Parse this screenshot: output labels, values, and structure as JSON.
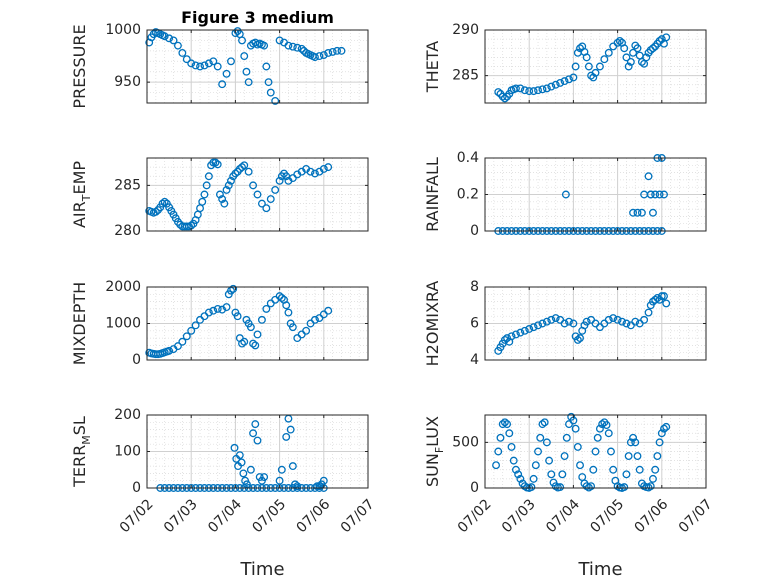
{
  "chart_data": [
    {
      "type": "scatter",
      "title": "Figure 3 medium",
      "ylabel_main": "PRESSURE",
      "ylabel_sub": "",
      "ylim": [
        930,
        1000
      ],
      "yticks": [
        950,
        1000
      ],
      "yticklabels": [
        "950",
        "1000"
      ],
      "xlim": [
        0,
        5
      ],
      "xticks": [
        0,
        1,
        2,
        3,
        4,
        5
      ],
      "xticklabels": [],
      "grid": true,
      "marker_color": "#0072BD",
      "x": [
        0.05,
        0.1,
        0.15,
        0.2,
        0.25,
        0.3,
        0.35,
        0.4,
        0.5,
        0.6,
        0.7,
        0.8,
        0.9,
        1.0,
        1.1,
        1.2,
        1.3,
        1.4,
        1.5,
        1.6,
        1.7,
        1.8,
        1.9,
        2.0,
        2.05,
        2.1,
        2.15,
        2.2,
        2.25,
        2.3,
        2.35,
        2.4,
        2.45,
        2.5,
        2.55,
        2.6,
        2.65,
        2.7,
        2.75,
        2.8,
        2.9,
        3.0,
        3.1,
        3.2,
        3.3,
        3.4,
        3.5,
        3.55,
        3.6,
        3.65,
        3.7,
        3.75,
        3.8,
        3.9,
        4.0,
        4.1,
        4.2,
        4.3,
        4.4
      ],
      "y": [
        988,
        993,
        996,
        998,
        997,
        996,
        995,
        994,
        992,
        990,
        985,
        978,
        972,
        968,
        966,
        965,
        966,
        968,
        970,
        965,
        948,
        958,
        970,
        997,
        999,
        996,
        990,
        975,
        960,
        950,
        985,
        987,
        988,
        986,
        987,
        986,
        985,
        965,
        950,
        940,
        932,
        990,
        988,
        985,
        984,
        983,
        982,
        980,
        978,
        977,
        976,
        975,
        974,
        975,
        976,
        978,
        979,
        980,
        980
      ]
    },
    {
      "type": "scatter",
      "title": "",
      "ylabel_main": "THETA",
      "ylabel_sub": "",
      "ylim": [
        282,
        290
      ],
      "yticks": [
        285,
        290
      ],
      "yticklabels": [
        "285",
        "290"
      ],
      "xlim": [
        0,
        5
      ],
      "xticks": [
        0,
        1,
        2,
        3,
        4,
        5
      ],
      "xticklabels": [],
      "grid": true,
      "marker_color": "#0072BD",
      "x": [
        0.3,
        0.35,
        0.4,
        0.45,
        0.5,
        0.55,
        0.6,
        0.65,
        0.7,
        0.8,
        0.9,
        1.0,
        1.1,
        1.2,
        1.3,
        1.4,
        1.5,
        1.6,
        1.7,
        1.8,
        1.9,
        2.0,
        2.05,
        2.1,
        2.15,
        2.2,
        2.25,
        2.3,
        2.35,
        2.4,
        2.45,
        2.5,
        2.6,
        2.7,
        2.8,
        2.9,
        3.0,
        3.05,
        3.1,
        3.15,
        3.2,
        3.25,
        3.3,
        3.35,
        3.4,
        3.45,
        3.5,
        3.55,
        3.6,
        3.65,
        3.7,
        3.75,
        3.8,
        3.85,
        3.9,
        3.95,
        4.0,
        4.05,
        4.1
      ],
      "y": [
        283.2,
        283.0,
        282.7,
        282.5,
        282.7,
        283.0,
        283.4,
        283.5,
        283.6,
        283.6,
        283.4,
        283.3,
        283.3,
        283.4,
        283.5,
        283.6,
        283.8,
        284.0,
        284.2,
        284.4,
        284.6,
        284.8,
        286.0,
        287.5,
        288.0,
        288.2,
        287.6,
        287.0,
        286.0,
        285.0,
        284.8,
        285.3,
        286.0,
        286.8,
        287.5,
        288.2,
        288.6,
        288.8,
        288.6,
        288.0,
        287.0,
        286.0,
        286.5,
        287.5,
        288.3,
        288.0,
        287.2,
        286.5,
        286.3,
        287.0,
        287.5,
        287.8,
        288.0,
        288.2,
        288.5,
        288.8,
        289.0,
        288.5,
        289.2
      ]
    },
    {
      "type": "scatter",
      "title": "",
      "ylabel_main": "AIR",
      "ylabel_sub": "T",
      "ylabel_tail": "EMP",
      "ylim": [
        280,
        288
      ],
      "yticks": [
        280,
        285
      ],
      "yticklabels": [
        "280",
        "285"
      ],
      "xlim": [
        0,
        5
      ],
      "xticks": [
        0,
        1,
        2,
        3,
        4,
        5
      ],
      "xticklabels": [],
      "grid": true,
      "marker_color": "#0072BD",
      "x": [
        0.05,
        0.1,
        0.15,
        0.2,
        0.25,
        0.3,
        0.35,
        0.4,
        0.45,
        0.5,
        0.55,
        0.6,
        0.65,
        0.7,
        0.75,
        0.8,
        0.85,
        0.9,
        0.95,
        1.0,
        1.05,
        1.1,
        1.15,
        1.2,
        1.25,
        1.3,
        1.35,
        1.4,
        1.45,
        1.5,
        1.55,
        1.6,
        1.65,
        1.7,
        1.75,
        1.8,
        1.85,
        1.9,
        1.95,
        2.0,
        2.05,
        2.1,
        2.15,
        2.2,
        2.3,
        2.4,
        2.5,
        2.6,
        2.7,
        2.8,
        2.9,
        3.0,
        3.05,
        3.1,
        3.15,
        3.2,
        3.3,
        3.4,
        3.5,
        3.6,
        3.7,
        3.8,
        3.9,
        4.0,
        4.1
      ],
      "y": [
        282.2,
        282.1,
        282.0,
        282.1,
        282.3,
        282.6,
        283.0,
        283.2,
        283.0,
        282.6,
        282.2,
        281.8,
        281.4,
        281.0,
        280.7,
        280.5,
        280.5,
        280.5,
        280.5,
        280.6,
        280.8,
        281.2,
        281.8,
        282.5,
        283.2,
        284.0,
        285.0,
        286.0,
        287.2,
        287.5,
        287.5,
        287.3,
        284.0,
        283.5,
        283.0,
        284.5,
        285.0,
        285.5,
        286.0,
        286.3,
        286.5,
        286.8,
        287.0,
        287.2,
        286.5,
        285.0,
        284.0,
        283.0,
        282.5,
        283.5,
        284.5,
        285.5,
        286.0,
        286.3,
        286.0,
        285.5,
        285.8,
        286.2,
        286.5,
        286.8,
        286.5,
        286.3,
        286.5,
        286.8,
        287.0
      ]
    },
    {
      "type": "scatter",
      "title": "",
      "ylabel_main": "RAINFALL",
      "ylabel_sub": "",
      "ylim": [
        0,
        0.4
      ],
      "yticks": [
        0,
        0.2,
        0.4
      ],
      "yticklabels": [
        "0",
        "0.2",
        "0.4"
      ],
      "xlim": [
        0,
        5
      ],
      "xticks": [
        0,
        1,
        2,
        3,
        4,
        5
      ],
      "xticklabels": [],
      "grid": true,
      "marker_color": "#0072BD",
      "x": [
        0.3,
        0.4,
        0.5,
        0.6,
        0.7,
        0.8,
        0.9,
        1.0,
        1.1,
        1.2,
        1.3,
        1.4,
        1.5,
        1.6,
        1.7,
        1.8,
        1.9,
        2.0,
        2.1,
        2.2,
        2.3,
        2.4,
        2.5,
        2.6,
        2.7,
        2.8,
        2.9,
        3.0,
        3.1,
        3.2,
        3.3,
        3.4,
        3.5,
        3.6,
        3.7,
        3.8,
        3.9,
        4.0,
        1.83,
        3.35,
        3.45,
        3.55,
        3.6,
        3.75,
        3.8,
        3.85,
        3.7,
        3.75,
        3.9,
        3.95,
        4.0,
        4.05
      ],
      "y": [
        0,
        0,
        0,
        0,
        0,
        0,
        0,
        0,
        0,
        0,
        0,
        0,
        0,
        0,
        0,
        0,
        0,
        0,
        0,
        0,
        0,
        0,
        0,
        0,
        0,
        0,
        0,
        0,
        0,
        0,
        0,
        0,
        0,
        0,
        0,
        0,
        0,
        0,
        0.2,
        0.1,
        0.1,
        0.1,
        0.2,
        0.2,
        0.1,
        0.2,
        0.3,
        0.2,
        0.4,
        0.2,
        0.4,
        0.2
      ]
    },
    {
      "type": "scatter",
      "title": "",
      "ylabel_main": "MIXDEPTH",
      "ylabel_sub": "",
      "ylim": [
        0,
        2000
      ],
      "yticks": [
        0,
        1000,
        2000
      ],
      "yticklabels": [
        "0",
        "1000",
        "2000"
      ],
      "xlim": [
        0,
        5
      ],
      "xticks": [
        0,
        1,
        2,
        3,
        4,
        5
      ],
      "xticklabels": [],
      "grid": true,
      "marker_color": "#0072BD",
      "x": [
        0.05,
        0.1,
        0.15,
        0.2,
        0.25,
        0.3,
        0.35,
        0.4,
        0.45,
        0.5,
        0.6,
        0.7,
        0.8,
        0.9,
        1.0,
        1.1,
        1.2,
        1.3,
        1.4,
        1.5,
        1.6,
        1.7,
        1.8,
        1.85,
        1.9,
        1.95,
        2.0,
        2.05,
        2.1,
        2.15,
        2.2,
        2.25,
        2.3,
        2.35,
        2.4,
        2.45,
        2.5,
        2.6,
        2.7,
        2.8,
        2.9,
        3.0,
        3.05,
        3.1,
        3.15,
        3.2,
        3.25,
        3.3,
        3.4,
        3.5,
        3.6,
        3.7,
        3.8,
        3.9,
        4.0,
        4.1
      ],
      "y": [
        200,
        180,
        170,
        160,
        160,
        170,
        190,
        210,
        230,
        250,
        300,
        380,
        500,
        650,
        800,
        950,
        1100,
        1200,
        1300,
        1350,
        1400,
        1380,
        1450,
        1800,
        1900,
        1950,
        1300,
        1200,
        600,
        450,
        500,
        1100,
        1000,
        900,
        450,
        400,
        700,
        1100,
        1400,
        1550,
        1650,
        1750,
        1700,
        1650,
        1500,
        1300,
        1000,
        900,
        600,
        700,
        800,
        1000,
        1100,
        1150,
        1250,
        1350
      ]
    },
    {
      "type": "scatter",
      "title": "",
      "ylabel_main": "H2OMIXRA",
      "ylabel_sub": "",
      "ylim": [
        4,
        8
      ],
      "yticks": [
        4,
        6,
        8
      ],
      "yticklabels": [
        "4",
        "6",
        "8"
      ],
      "xlim": [
        0,
        5
      ],
      "xticks": [
        0,
        1,
        2,
        3,
        4,
        5
      ],
      "xticklabels": [],
      "grid": true,
      "marker_color": "#0072BD",
      "x": [
        0.3,
        0.35,
        0.4,
        0.45,
        0.5,
        0.55,
        0.6,
        0.7,
        0.8,
        0.9,
        1.0,
        1.1,
        1.2,
        1.3,
        1.4,
        1.5,
        1.6,
        1.7,
        1.8,
        1.9,
        2.0,
        2.05,
        2.1,
        2.15,
        2.2,
        2.25,
        2.3,
        2.4,
        2.5,
        2.6,
        2.7,
        2.8,
        2.9,
        3.0,
        3.1,
        3.2,
        3.3,
        3.4,
        3.5,
        3.6,
        3.7,
        3.75,
        3.8,
        3.85,
        3.9,
        3.95,
        4.0,
        4.05,
        4.1
      ],
      "y": [
        4.5,
        4.7,
        4.9,
        5.1,
        5.2,
        5.0,
        5.3,
        5.4,
        5.5,
        5.6,
        5.7,
        5.8,
        5.9,
        6.0,
        6.1,
        6.2,
        6.3,
        6.2,
        6.0,
        6.1,
        6.0,
        5.3,
        5.1,
        5.2,
        5.6,
        5.9,
        6.1,
        6.2,
        6.0,
        5.8,
        6.0,
        6.2,
        6.3,
        6.2,
        6.1,
        6.0,
        5.9,
        6.1,
        6.0,
        6.2,
        6.6,
        7.0,
        7.2,
        7.3,
        7.4,
        7.3,
        7.5,
        7.5,
        7.1
      ]
    },
    {
      "type": "scatter",
      "title": "",
      "ylabel_main": "TERR",
      "ylabel_sub": "M",
      "ylabel_tail": "SL",
      "ylim": [
        0,
        200
      ],
      "yticks": [
        0,
        100,
        200
      ],
      "yticklabels": [
        "0",
        "100",
        "200"
      ],
      "xlim": [
        0,
        5
      ],
      "xticks": [
        0,
        1,
        2,
        3,
        4,
        5
      ],
      "xticklabels": [
        "07/02",
        "07/03",
        "07/04",
        "07/05",
        "07/06",
        "07/07"
      ],
      "xlabel": "Time",
      "grid": true,
      "marker_color": "#0072BD",
      "x": [
        0.3,
        0.4,
        0.5,
        0.6,
        0.7,
        0.8,
        0.9,
        1.0,
        1.1,
        1.2,
        1.3,
        1.4,
        1.5,
        1.6,
        1.7,
        1.8,
        1.9,
        2.0,
        2.1,
        2.2,
        2.3,
        2.4,
        2.5,
        2.6,
        2.7,
        2.8,
        2.9,
        3.0,
        3.1,
        3.2,
        3.3,
        3.4,
        3.5,
        3.6,
        3.7,
        3.8,
        3.9,
        4.0,
        1.98,
        2.02,
        2.06,
        2.1,
        2.14,
        2.18,
        2.22,
        2.26,
        2.35,
        2.4,
        2.45,
        2.5,
        2.55,
        2.6,
        2.65,
        3.0,
        3.05,
        3.15,
        3.2,
        3.25,
        3.3,
        3.35,
        3.4,
        3.85,
        3.9,
        3.95,
        4.0
      ],
      "y": [
        0,
        0,
        0,
        0,
        0,
        0,
        0,
        0,
        0,
        0,
        0,
        0,
        0,
        0,
        0,
        0,
        0,
        0,
        0,
        0,
        0,
        0,
        0,
        0,
        0,
        0,
        0,
        0,
        0,
        0,
        0,
        0,
        0,
        0,
        0,
        0,
        0,
        0,
        110,
        80,
        60,
        90,
        70,
        40,
        20,
        10,
        50,
        150,
        175,
        130,
        30,
        20,
        30,
        20,
        50,
        140,
        190,
        160,
        60,
        10,
        5,
        5,
        5,
        10,
        20
      ]
    },
    {
      "type": "scatter",
      "title": "",
      "ylabel_main": "SUN",
      "ylabel_sub": "F",
      "ylabel_tail": "LUX",
      "ylim": [
        0,
        800
      ],
      "yticks": [
        0,
        500
      ],
      "yticklabels": [
        "0",
        "500"
      ],
      "xlim": [
        0,
        5
      ],
      "xticks": [
        0,
        1,
        2,
        3,
        4,
        5
      ],
      "xticklabels": [
        "07/02",
        "07/03",
        "07/04",
        "07/05",
        "07/06",
        "07/07"
      ],
      "xlabel": "Time",
      "grid": true,
      "marker_color": "#0072BD",
      "x": [
        0.25,
        0.3,
        0.35,
        0.4,
        0.45,
        0.5,
        0.55,
        0.6,
        0.65,
        0.7,
        0.75,
        0.8,
        0.85,
        0.9,
        0.95,
        1.0,
        1.05,
        1.1,
        1.15,
        1.2,
        1.25,
        1.3,
        1.35,
        1.4,
        1.45,
        1.5,
        1.55,
        1.6,
        1.65,
        1.7,
        1.75,
        1.8,
        1.85,
        1.9,
        1.95,
        2.0,
        2.05,
        2.1,
        2.15,
        2.2,
        2.25,
        2.3,
        2.35,
        2.4,
        2.45,
        2.5,
        2.55,
        2.6,
        2.65,
        2.7,
        2.75,
        2.8,
        2.85,
        2.9,
        2.95,
        3.0,
        3.05,
        3.1,
        3.15,
        3.2,
        3.25,
        3.3,
        3.35,
        3.4,
        3.45,
        3.5,
        3.55,
        3.6,
        3.65,
        3.7,
        3.75,
        3.8,
        3.85,
        3.9,
        3.95,
        4.0,
        4.05,
        4.1
      ],
      "y": [
        250,
        400,
        550,
        700,
        720,
        700,
        600,
        450,
        300,
        200,
        150,
        100,
        50,
        20,
        5,
        0,
        10,
        100,
        250,
        400,
        550,
        700,
        720,
        500,
        300,
        150,
        60,
        20,
        5,
        10,
        150,
        350,
        550,
        700,
        780,
        740,
        650,
        450,
        250,
        120,
        50,
        20,
        5,
        20,
        200,
        400,
        550,
        650,
        700,
        720,
        690,
        600,
        400,
        200,
        80,
        20,
        5,
        0,
        10,
        150,
        350,
        500,
        550,
        500,
        350,
        200,
        50,
        20,
        10,
        5,
        20,
        100,
        200,
        350,
        500,
        600,
        650,
        670
      ]
    }
  ]
}
